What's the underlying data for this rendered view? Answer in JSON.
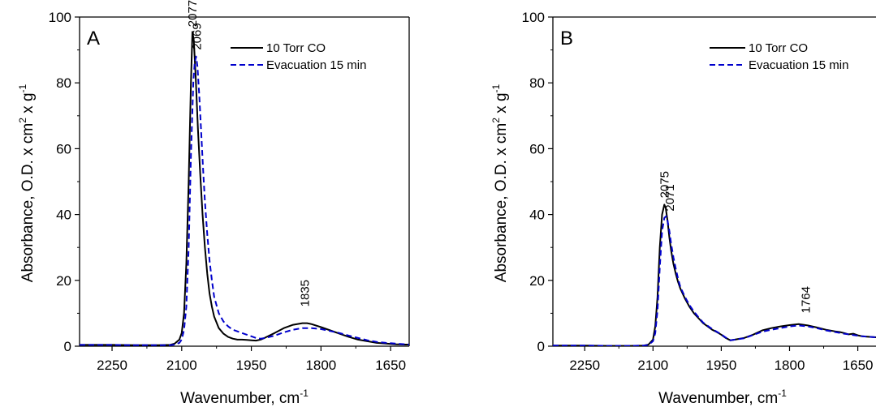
{
  "colors": {
    "series_1": "#000000",
    "series_2": "#0000cc",
    "axis": "#000000"
  },
  "chart_data": [
    {
      "type": "line",
      "panel_label": "A",
      "xlabel": "Wavenumber, cm",
      "xlabel_sup": "-1",
      "ylabel_parts": [
        "Absorbance, O.D. x cm",
        "2",
        " x g",
        "-1"
      ],
      "x_reversed": true,
      "xlim": [
        2320,
        1610
      ],
      "ylim": [
        0,
        100
      ],
      "x_ticks": [
        2250,
        2100,
        1950,
        1800,
        1650
      ],
      "x_tick_labels": [
        "2250",
        "2100",
        "1950",
        "1800",
        "1650"
      ],
      "y_ticks": [
        0,
        20,
        40,
        60,
        80,
        100
      ],
      "y_tick_labels": [
        "0",
        "20",
        "40",
        "60",
        "80",
        "100"
      ],
      "legend": [
        "10 Torr CO",
        "Evacuation 15 min"
      ],
      "legend_position": "top-right",
      "annotations": [
        {
          "text": "2077",
          "x": 2077,
          "y": 96
        },
        {
          "text": "2069",
          "x": 2067,
          "y": 89
        },
        {
          "text": "1835",
          "x": 1835,
          "y": 11
        }
      ],
      "series": [
        {
          "name": "10 Torr CO",
          "style": "solid",
          "x": [
            2320,
            2250,
            2200,
            2150,
            2125,
            2115,
            2105,
            2100,
            2095,
            2090,
            2085,
            2080,
            2077,
            2074,
            2070,
            2065,
            2060,
            2055,
            2050,
            2045,
            2040,
            2035,
            2030,
            2020,
            2010,
            2000,
            1990,
            1980,
            1970,
            1960,
            1950,
            1940,
            1930,
            1920,
            1900,
            1880,
            1860,
            1840,
            1830,
            1820,
            1800,
            1780,
            1760,
            1740,
            1720,
            1700,
            1680,
            1660,
            1640,
            1620,
            1610
          ],
          "y": [
            0.4,
            0.4,
            0.3,
            0.3,
            0.4,
            0.8,
            2.0,
            4.0,
            10,
            25,
            50,
            80,
            95.5,
            93,
            82,
            66,
            52,
            40,
            30,
            22,
            16,
            12,
            9,
            5.5,
            3.8,
            2.8,
            2.3,
            2.0,
            2.0,
            1.9,
            1.8,
            1.7,
            2.0,
            2.6,
            4,
            5.5,
            6.5,
            7.0,
            7.0,
            6.7,
            5.8,
            4.8,
            3.8,
            2.8,
            2.0,
            1.5,
            1.0,
            0.8,
            0.6,
            0.5,
            0.5
          ]
        },
        {
          "name": "Evacuation 15 min",
          "style": "dashed",
          "x": [
            2320,
            2250,
            2200,
            2150,
            2125,
            2115,
            2105,
            2100,
            2095,
            2090,
            2085,
            2080,
            2075,
            2072,
            2069,
            2066,
            2062,
            2058,
            2054,
            2050,
            2045,
            2040,
            2035,
            2030,
            2020,
            2010,
            2000,
            1990,
            1980,
            1970,
            1960,
            1950,
            1940,
            1930,
            1920,
            1900,
            1880,
            1860,
            1840,
            1820,
            1800,
            1780,
            1760,
            1740,
            1720,
            1700,
            1680,
            1660,
            1640,
            1620,
            1610
          ],
          "y": [
            0.4,
            0.4,
            0.3,
            0.3,
            0.3,
            0.5,
            1.0,
            2.0,
            5,
            12,
            30,
            58,
            80,
            86,
            88,
            85,
            76,
            65,
            54,
            44,
            34,
            26,
            20,
            15,
            10,
            7.5,
            6,
            5,
            4.5,
            4.0,
            3.5,
            3.0,
            2.5,
            2.3,
            2.5,
            3.2,
            4.2,
            5.0,
            5.5,
            5.5,
            5.2,
            4.6,
            4.0,
            3.2,
            2.5,
            1.8,
            1.3,
            1.0,
            0.8,
            0.6,
            0.5
          ]
        }
      ]
    },
    {
      "type": "line",
      "panel_label": "B",
      "xlabel": "Wavenumber, cm",
      "xlabel_sup": "-1",
      "ylabel_parts": [
        "Absorbance, O.D. x cm",
        "2",
        " x g",
        "-1"
      ],
      "x_reversed": true,
      "xlim": [
        2320,
        1610
      ],
      "ylim": [
        0,
        100
      ],
      "x_ticks": [
        2250,
        2100,
        1950,
        1800,
        1650
      ],
      "x_tick_labels": [
        "2250",
        "2100",
        "1950",
        "1800",
        "1650"
      ],
      "y_ticks": [
        0,
        20,
        40,
        60,
        80,
        100
      ],
      "y_tick_labels": [
        "0",
        "20",
        "40",
        "60",
        "80",
        "100"
      ],
      "legend": [
        "10 Torr CO",
        "Evacuation 15 min"
      ],
      "legend_position": "top-right",
      "annotations": [
        {
          "text": "2075",
          "x": 2075,
          "y": 44
        },
        {
          "text": "2071",
          "x": 2063,
          "y": 40
        },
        {
          "text": "1764",
          "x": 1764,
          "y": 9
        }
      ],
      "series": [
        {
          "name": "10 Torr CO",
          "style": "solid",
          "x": [
            2320,
            2250,
            2200,
            2150,
            2120,
            2110,
            2100,
            2095,
            2090,
            2085,
            2080,
            2075,
            2072,
            2068,
            2064,
            2060,
            2055,
            2050,
            2045,
            2040,
            2030,
            2020,
            2010,
            2000,
            1990,
            1980,
            1970,
            1960,
            1950,
            1940,
            1930,
            1920,
            1900,
            1880,
            1860,
            1840,
            1820,
            1800,
            1780,
            1760,
            1740,
            1720,
            1700,
            1690,
            1680,
            1670,
            1660,
            1650,
            1640,
            1630,
            1620,
            1610
          ],
          "y": [
            0.2,
            0.2,
            0.1,
            0.1,
            0.2,
            0.5,
            2,
            6,
            15,
            30,
            40,
            43,
            42,
            38,
            33,
            29,
            25,
            22,
            19.5,
            17.5,
            14.5,
            12,
            10,
            8.5,
            7,
            6,
            5,
            4.3,
            3.5,
            2.5,
            1.8,
            2.0,
            2.5,
            3.5,
            4.8,
            5.5,
            6.0,
            6.4,
            6.7,
            6.3,
            5.7,
            5.0,
            4.5,
            4.3,
            4.0,
            3.6,
            3.8,
            3.3,
            3.0,
            2.9,
            2.8,
            2.7
          ]
        },
        {
          "name": "Evacuation 15 min",
          "style": "dashed",
          "x": [
            2320,
            2250,
            2200,
            2150,
            2120,
            2110,
            2100,
            2095,
            2090,
            2085,
            2080,
            2075,
            2071,
            2068,
            2064,
            2060,
            2055,
            2050,
            2045,
            2040,
            2030,
            2020,
            2010,
            2000,
            1990,
            1980,
            1970,
            1960,
            1950,
            1940,
            1930,
            1920,
            1900,
            1880,
            1860,
            1840,
            1820,
            1800,
            1780,
            1760,
            1740,
            1720,
            1700,
            1680,
            1660,
            1640,
            1620,
            1610
          ],
          "y": [
            0.2,
            0.2,
            0.1,
            0.1,
            0.2,
            0.4,
            1.5,
            4,
            11,
            24,
            35,
            39,
            39.5,
            38,
            35,
            31,
            27,
            23.5,
            20.5,
            18,
            15,
            12.5,
            10.5,
            8.8,
            7.2,
            6.2,
            5.2,
            4.4,
            3.6,
            2.6,
            1.8,
            2.0,
            2.4,
            3.4,
            4.4,
            5.0,
            5.5,
            6.0,
            6.3,
            6.0,
            5.5,
            4.8,
            4.3,
            3.8,
            3.4,
            3.0,
            2.8,
            2.7
          ]
        }
      ]
    }
  ]
}
